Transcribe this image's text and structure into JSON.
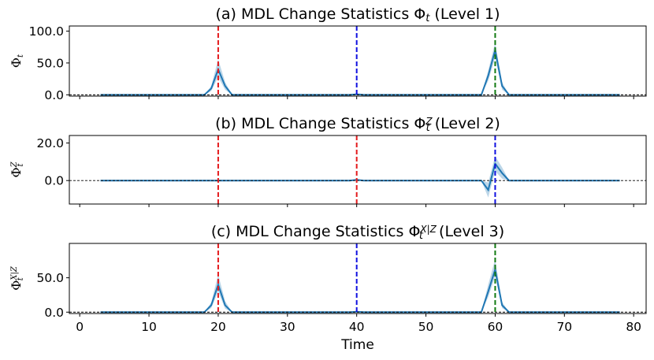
{
  "chart_data": [
    {
      "type": "line",
      "title": "(a) MDL Change Statistics Φ",
      "title_sub": "t",
      "title_sup": "",
      "title_suffix": " (Level 1)",
      "ylabel": "Φ",
      "ylabel_sub": "t",
      "ylabel_sup": "",
      "ylim": [
        -2,
        108
      ],
      "yticks": [
        0,
        50,
        100
      ],
      "yticklabels": [
        "0.0",
        "50.0",
        "100.0"
      ],
      "series": [
        {
          "name": "mean",
          "x": [
            3,
            18,
            19,
            20,
            21,
            22,
            39,
            40,
            41,
            58,
            59,
            60,
            61,
            62,
            78
          ],
          "y": [
            0,
            0,
            10,
            40,
            14,
            0,
            0,
            1,
            0,
            0,
            30,
            70,
            14,
            0,
            0
          ],
          "lower": [
            0,
            0,
            6,
            28,
            8,
            0,
            0,
            0,
            0,
            0,
            22,
            58,
            8,
            0,
            0
          ],
          "upper": [
            0,
            0,
            14,
            56,
            20,
            0,
            0,
            2,
            0,
            0,
            38,
            82,
            20,
            0,
            0
          ]
        }
      ],
      "vlines": [
        {
          "x": 20,
          "color": "#e41a1c"
        },
        {
          "x": 40,
          "color": "#1010e0"
        },
        {
          "x": 60,
          "color": "#127a12"
        }
      ]
    },
    {
      "type": "line",
      "title": "(b) MDL Change Statistics Φ",
      "title_sub": "t",
      "title_sup": "Z",
      "title_suffix": " (Level 2)",
      "ylabel": "Φ",
      "ylabel_sub": "t",
      "ylabel_sup": "Z",
      "ylim": [
        -12.5,
        24
      ],
      "yticks": [
        0,
        20
      ],
      "yticklabels": [
        "0.0",
        "20.0"
      ],
      "series": [
        {
          "name": "mean",
          "x": [
            3,
            39,
            40,
            41,
            58,
            59,
            60,
            61,
            62,
            78
          ],
          "y": [
            0,
            0,
            0.4,
            0,
            0,
            -5,
            9,
            4,
            0,
            0
          ],
          "lower": [
            0,
            0,
            0,
            0,
            0,
            -9,
            5,
            1,
            0,
            0
          ],
          "upper": [
            0,
            0,
            0.8,
            0,
            0,
            -1,
            13,
            7,
            0,
            0
          ]
        }
      ],
      "vlines": [
        {
          "x": 20,
          "color": "#e41a1c"
        },
        {
          "x": 40,
          "color": "#e41a1c"
        },
        {
          "x": 60,
          "color": "#1010e0"
        }
      ]
    },
    {
      "type": "line",
      "title": "(c) MDL Change Statistics Φ",
      "title_sub": "t",
      "title_sup": "X|Z",
      "title_suffix": " (Level 3)",
      "ylabel": "Φ",
      "ylabel_sub": "t",
      "ylabel_sup": "X|Z",
      "ylim": [
        -2,
        100
      ],
      "yticks": [
        0,
        50
      ],
      "yticklabels": [
        "0.0",
        "50.0"
      ],
      "series": [
        {
          "name": "mean",
          "x": [
            3,
            18,
            19,
            20,
            21,
            22,
            39,
            40,
            41,
            58,
            59,
            60,
            61,
            62,
            78
          ],
          "y": [
            0,
            0,
            10,
            40,
            10,
            0,
            0,
            0.5,
            0,
            0,
            30,
            62,
            10,
            0,
            0
          ],
          "lower": [
            0,
            0,
            6,
            30,
            5,
            0,
            0,
            0,
            0,
            0,
            22,
            52,
            6,
            0,
            0
          ],
          "upper": [
            0,
            0,
            14,
            55,
            16,
            0,
            0,
            1,
            0,
            0,
            40,
            77,
            15,
            0,
            0
          ]
        }
      ],
      "vlines": [
        {
          "x": 20,
          "color": "#e41a1c"
        },
        {
          "x": 40,
          "color": "#1010e0"
        },
        {
          "x": 60,
          "color": "#127a12"
        }
      ]
    }
  ],
  "xaxis": {
    "xlim": [
      -1.5,
      81.8
    ],
    "xticks": [
      0,
      10,
      20,
      30,
      40,
      50,
      60,
      70,
      80
    ],
    "xticklabels": [
      "0",
      "10",
      "20",
      "30",
      "40",
      "50",
      "60",
      "70",
      "80"
    ],
    "xlabel": "Time"
  },
  "colors": {
    "line": "#1f77b4",
    "band": "#a6c8e0",
    "zero_line": "#000000",
    "axes": "#000000"
  }
}
